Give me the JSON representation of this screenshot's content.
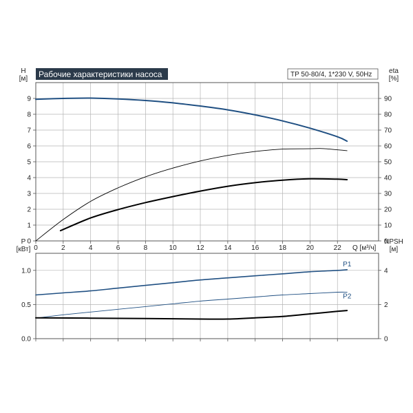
{
  "title": "Рабочие характеристики насоса",
  "model": "TP 50-80/4, 1*230 V, 50Hz",
  "colors": {
    "title_bg": "#2b3a4a",
    "grid": "#b4b4b4",
    "frame": "#555555",
    "blue": "#1f4f82",
    "black": "#000000"
  },
  "chart_data": [
    {
      "type": "line",
      "panel": "top",
      "xlabel": "Q [м³/ч]",
      "xlim": [
        0,
        25
      ],
      "xticks": [
        0,
        2,
        4,
        6,
        8,
        10,
        12,
        14,
        16,
        18,
        20,
        22
      ],
      "left_axis": {
        "label_line1": "H",
        "label_line2": "[м]",
        "lim": [
          0,
          10
        ],
        "ticks": [
          0,
          1,
          2,
          3,
          4,
          5,
          6,
          7,
          8,
          9
        ]
      },
      "right_axis": {
        "label_line1": "eta",
        "label_line2": "[%]",
        "lim": [
          0,
          100
        ],
        "ticks": [
          0,
          10,
          20,
          30,
          40,
          50,
          60,
          70,
          80,
          90
        ]
      },
      "series": [
        {
          "axis": "left",
          "color": "#1f4f82",
          "width": 2,
          "x": [
            0,
            2,
            4,
            6,
            8,
            10,
            12,
            14,
            16,
            18,
            20,
            22,
            22.7
          ],
          "y": [
            8.95,
            9.0,
            9.02,
            8.97,
            8.87,
            8.72,
            8.52,
            8.28,
            7.96,
            7.58,
            7.12,
            6.58,
            6.3
          ]
        },
        {
          "axis": "right",
          "color": "#000000",
          "width": 0.9,
          "x": [
            0,
            2,
            4,
            6,
            8,
            10,
            12,
            14,
            16,
            18,
            20,
            21,
            22.7
          ],
          "y": [
            0,
            13.5,
            25,
            33.5,
            40.5,
            46,
            50.5,
            54,
            56.5,
            58,
            58.2,
            58.3,
            57
          ]
        },
        {
          "axis": "left",
          "color": "#000000",
          "width": 2,
          "x": [
            1.8,
            4,
            6,
            8,
            10,
            12,
            14,
            16,
            18,
            20,
            22,
            22.7
          ],
          "y": [
            0.65,
            1.45,
            1.98,
            2.42,
            2.8,
            3.15,
            3.45,
            3.68,
            3.84,
            3.92,
            3.9,
            3.87
          ]
        }
      ]
    },
    {
      "type": "line",
      "panel": "bottom",
      "xlim": [
        0,
        25
      ],
      "xticks": [
        0,
        2,
        4,
        6,
        8,
        10,
        12,
        14,
        16,
        18,
        20,
        22
      ],
      "left_axis": {
        "label_line1": "P",
        "label_line2": "[кВт]",
        "lim": [
          0,
          1.25
        ],
        "ticks": [
          0,
          0.5,
          1.0
        ],
        "tick_labels": [
          "0.0",
          "0.5",
          "1.0"
        ]
      },
      "right_axis": {
        "label_line1": "NPSH",
        "label_line2": "[м]",
        "lim": [
          0,
          5
        ],
        "ticks": [
          0,
          2,
          4
        ],
        "tick_labels": [
          "0",
          "2",
          "4"
        ]
      },
      "series": [
        {
          "name": "P1",
          "axis": "left",
          "color": "#1f4f82",
          "width": 1.6,
          "x": [
            0,
            2,
            4,
            6,
            8,
            10,
            12,
            14,
            16,
            18,
            20,
            22,
            22.7
          ],
          "y": [
            0.64,
            0.67,
            0.7,
            0.74,
            0.78,
            0.82,
            0.86,
            0.89,
            0.92,
            0.95,
            0.98,
            1.0,
            1.01
          ]
        },
        {
          "name": "P2",
          "axis": "left",
          "color": "#1f4f82",
          "width": 0.9,
          "x": [
            0,
            2,
            4,
            6,
            8,
            10,
            12,
            14,
            16,
            18,
            20,
            22,
            22.7
          ],
          "y": [
            0.3,
            0.35,
            0.39,
            0.43,
            0.47,
            0.51,
            0.55,
            0.58,
            0.61,
            0.64,
            0.66,
            0.68,
            0.68
          ]
        },
        {
          "axis": "right",
          "color": "#000000",
          "width": 2,
          "x": [
            0,
            4,
            8,
            12,
            14,
            16,
            18,
            20,
            22,
            22.7
          ],
          "y": [
            1.22,
            1.2,
            1.18,
            1.15,
            1.15,
            1.22,
            1.3,
            1.45,
            1.6,
            1.65
          ]
        }
      ]
    }
  ]
}
